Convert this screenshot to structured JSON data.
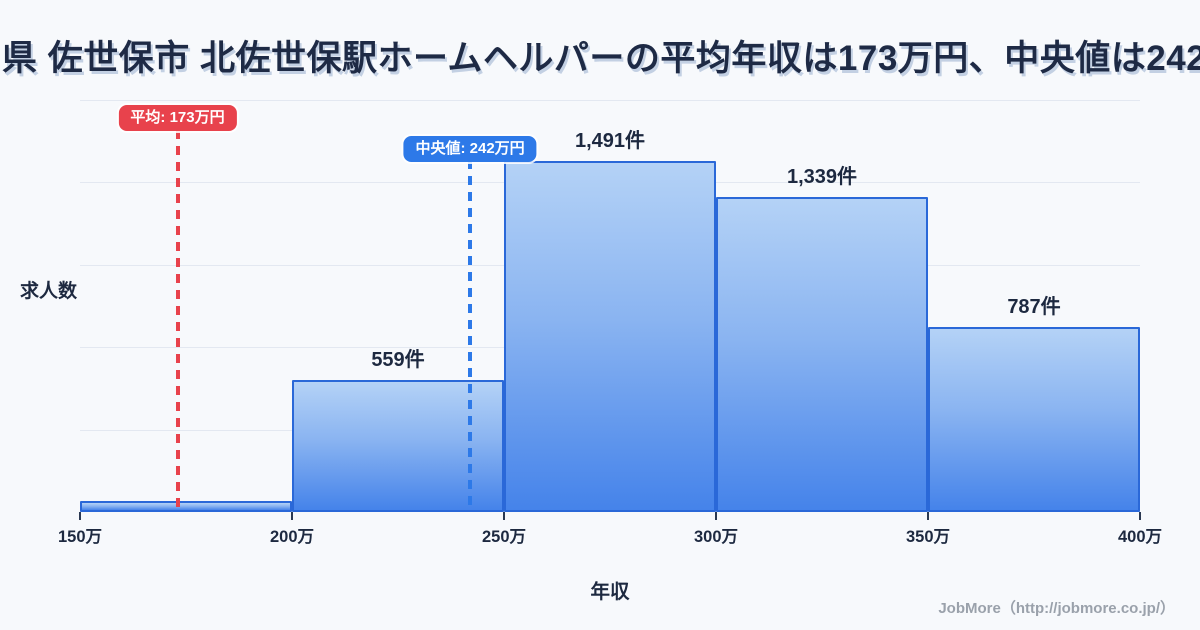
{
  "title": "県 佐世保市 北佐世保駅ホームヘルパーの平均年収は173万円、中央値は242",
  "chart_data": {
    "type": "bar",
    "subtype": "histogram",
    "title": "県 佐世保市 北佐世保駅ホームヘルパーの平均年収は173万円、中央値は242",
    "xlabel": "年収",
    "ylabel": "求人数",
    "x_ticks": [
      "150万",
      "200万",
      "250万",
      "300万",
      "350万",
      "400万"
    ],
    "x_range": [
      150,
      400
    ],
    "categories": [
      "150万-200万",
      "200万-250万",
      "250万-300万",
      "300万-350万",
      "350万-400万"
    ],
    "values": [
      45,
      559,
      1491,
      1339,
      787
    ],
    "bar_labels": [
      "",
      "559件",
      "1,491件",
      "1,339件",
      "787件"
    ],
    "ylim": [
      0,
      1750
    ],
    "grid": true,
    "gridline_count": 5,
    "annotations": [
      {
        "name": "mean",
        "label": "平均: 173万円",
        "value": 173,
        "color": "#e8424c"
      },
      {
        "name": "median",
        "label": "中央値: 242万円",
        "value": 242,
        "color": "#2d79e8"
      }
    ],
    "bar_border_color": "#2a68d8",
    "bar_fill_top": "#b4d2f6",
    "bar_fill_bottom": "#4583ea"
  },
  "footer": {
    "credit": "JobMore（http://jobmore.co.jp/）"
  },
  "colors": {
    "background": "#f7f9fc",
    "text_dark": "#1d2940",
    "gridline": "#e3e8f1",
    "mean_red": "#e8424c",
    "median_blue": "#2d79e8",
    "footer_gray": "#9aa1ab"
  }
}
